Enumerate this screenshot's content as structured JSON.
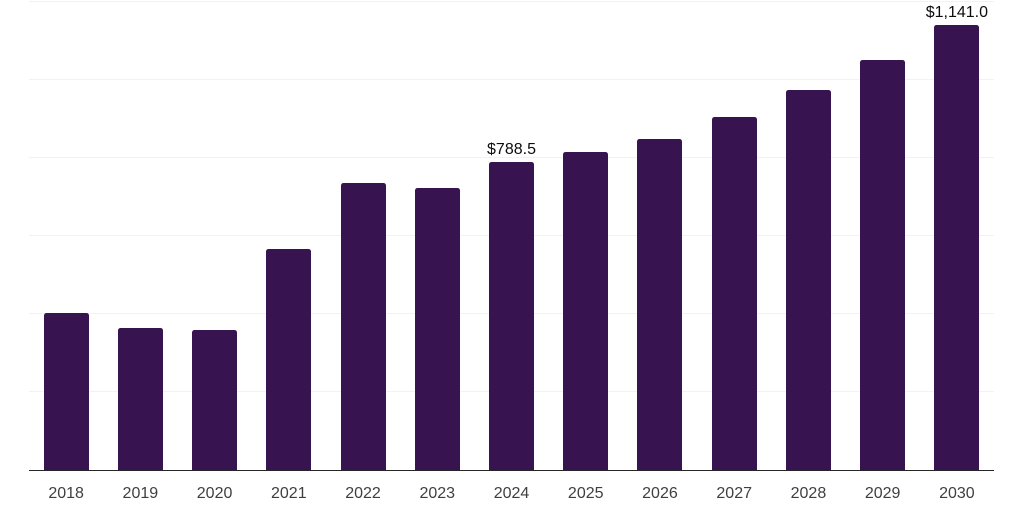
{
  "chart_style": {
    "background_color": "#ffffff",
    "bar_color": "#37134F",
    "grid_color": "#f2f2f2",
    "axis_color": "#262626",
    "tick_label_color": "#3f3f3f",
    "data_label_color": "#0d0d0d"
  },
  "chart_data": {
    "type": "bar",
    "title": "",
    "xlabel": "",
    "ylabel": "",
    "categories": [
      "2018",
      "2019",
      "2020",
      "2021",
      "2022",
      "2023",
      "2024",
      "2025",
      "2026",
      "2027",
      "2028",
      "2029",
      "2030"
    ],
    "values": [
      403,
      365,
      360,
      566,
      737,
      724,
      788.5,
      815,
      848,
      906,
      974,
      1051,
      1141
    ],
    "bar_labels": [
      "",
      "",
      "",
      "",
      "",
      "",
      "$788.5",
      "",
      "",
      "",
      "",
      "",
      "$1,141.0"
    ],
    "ylim": [
      0,
      1200
    ],
    "gridline_values": [
      200,
      400,
      600,
      800,
      1000,
      1200
    ],
    "grid": true,
    "legend": false,
    "y_axis_labels_visible": false
  }
}
